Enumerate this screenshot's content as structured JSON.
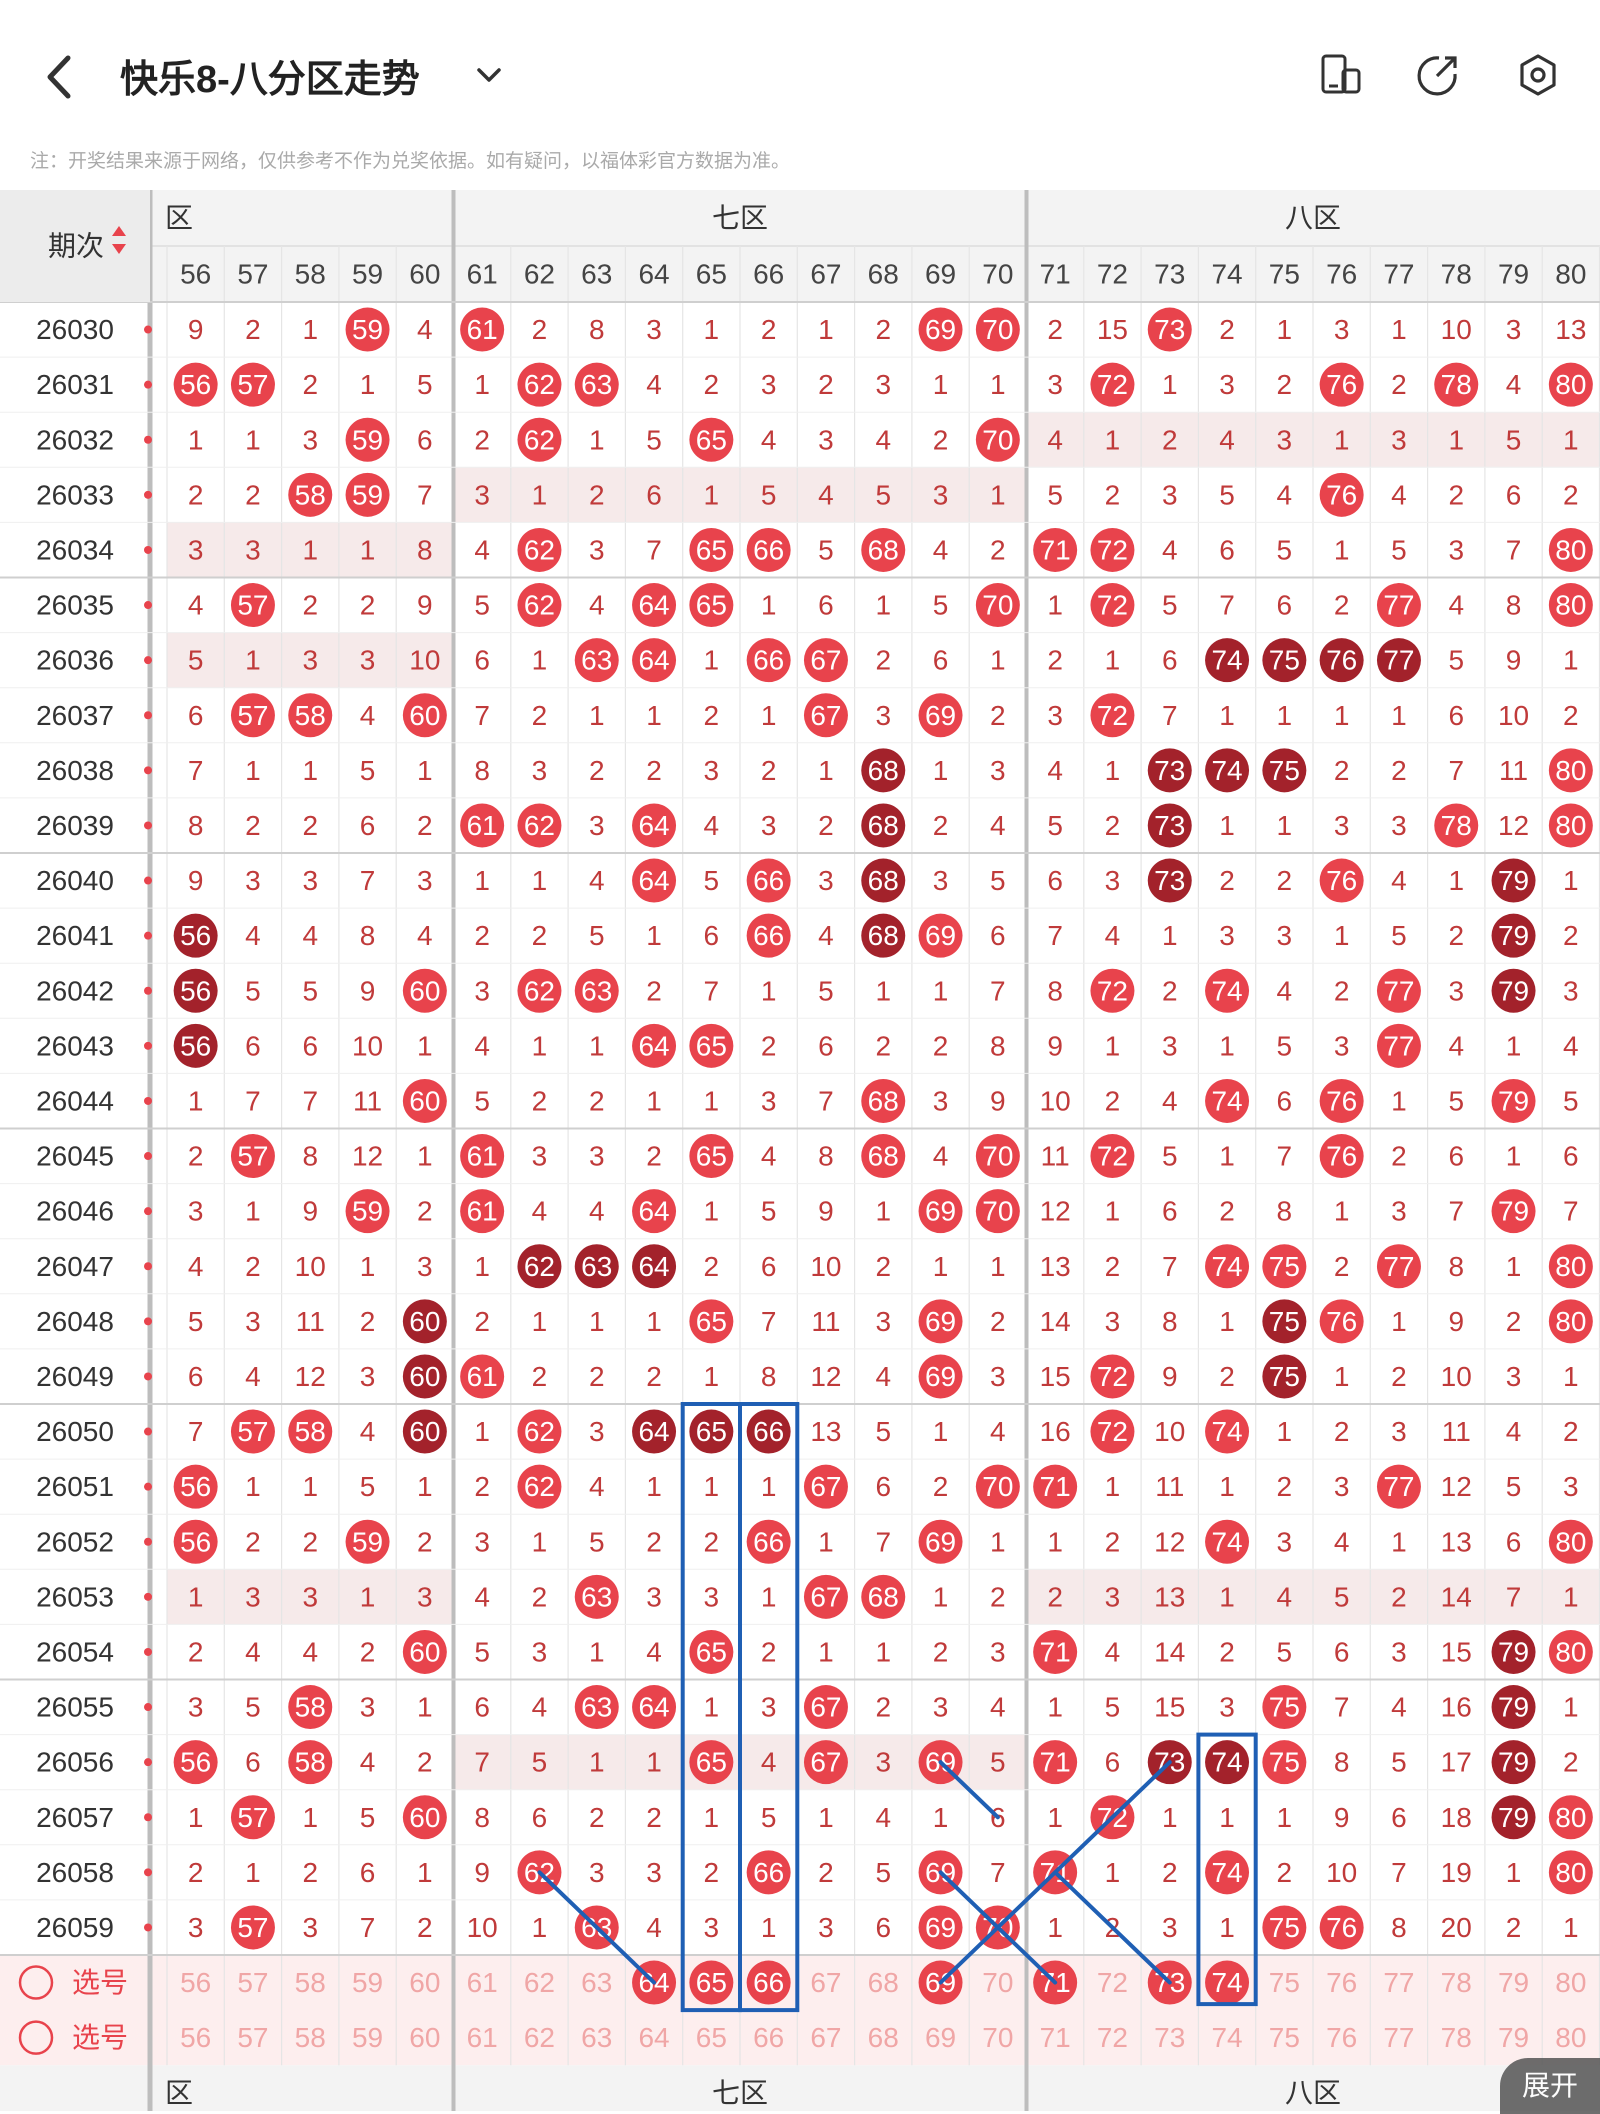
{
  "header": {
    "title": "快乐8-八分区走势",
    "note": "注：开奖结果来源于网络，仅供参考不作为兑奖依据。如有疑问，以福体彩官方数据为准。",
    "icons": [
      "back-icon",
      "dropdown-icon",
      "device-icon",
      "share-icon",
      "settings-icon"
    ]
  },
  "table": {
    "period_header": "期次",
    "sections": [
      {
        "label": "六区",
        "start": 56,
        "end": 60
      },
      {
        "label": "七区",
        "start": 61,
        "end": 70
      },
      {
        "label": "八区",
        "start": 71,
        "end": 80
      }
    ],
    "columns": [
      56,
      57,
      58,
      59,
      60,
      61,
      62,
      63,
      64,
      65,
      66,
      67,
      68,
      69,
      70,
      71,
      72,
      73,
      74,
      75,
      76,
      77,
      78,
      79,
      80
    ],
    "rows": [
      {
        "period": "26030",
        "values": [
          9,
          2,
          1,
          59,
          4,
          61,
          2,
          8,
          3,
          1,
          2,
          1,
          2,
          69,
          70,
          2,
          15,
          73,
          2,
          1,
          3,
          1,
          10,
          3,
          13
        ]
      },
      {
        "period": "26031",
        "values": [
          56,
          57,
          2,
          1,
          5,
          1,
          62,
          63,
          4,
          2,
          3,
          2,
          3,
          1,
          1,
          3,
          72,
          1,
          3,
          2,
          76,
          2,
          78,
          4,
          80
        ]
      },
      {
        "period": "26032",
        "values": [
          1,
          1,
          3,
          59,
          6,
          2,
          62,
          1,
          5,
          65,
          4,
          3,
          4,
          2,
          70,
          4,
          1,
          2,
          4,
          3,
          1,
          3,
          1,
          5,
          1
        ]
      },
      {
        "period": "26033",
        "values": [
          2,
          2,
          58,
          59,
          7,
          3,
          1,
          2,
          6,
          1,
          5,
          4,
          5,
          3,
          1,
          5,
          2,
          3,
          5,
          4,
          76,
          4,
          2,
          6,
          2
        ]
      },
      {
        "period": "26034",
        "values": [
          3,
          3,
          1,
          1,
          8,
          4,
          62,
          3,
          7,
          65,
          66,
          5,
          68,
          4,
          2,
          71,
          72,
          4,
          6,
          5,
          1,
          5,
          3,
          7,
          80
        ]
      },
      {
        "period": "26035",
        "values": [
          4,
          57,
          2,
          2,
          9,
          5,
          62,
          4,
          64,
          65,
          1,
          6,
          1,
          5,
          70,
          1,
          72,
          5,
          7,
          6,
          2,
          77,
          4,
          8,
          80
        ]
      },
      {
        "period": "26036",
        "values": [
          5,
          1,
          3,
          3,
          10,
          6,
          1,
          63,
          64,
          1,
          66,
          67,
          2,
          6,
          1,
          2,
          1,
          6,
          74,
          75,
          76,
          77,
          5,
          9,
          1
        ]
      },
      {
        "period": "26037",
        "values": [
          6,
          57,
          58,
          4,
          60,
          7,
          2,
          1,
          1,
          2,
          1,
          67,
          3,
          69,
          2,
          3,
          72,
          7,
          1,
          1,
          1,
          1,
          6,
          10,
          2
        ]
      },
      {
        "period": "26038",
        "values": [
          7,
          1,
          1,
          5,
          1,
          8,
          3,
          2,
          2,
          3,
          2,
          1,
          68,
          1,
          3,
          4,
          1,
          73,
          74,
          75,
          2,
          2,
          7,
          11,
          80
        ]
      },
      {
        "period": "26039",
        "values": [
          8,
          2,
          2,
          6,
          2,
          61,
          62,
          3,
          64,
          4,
          3,
          2,
          68,
          2,
          4,
          5,
          2,
          73,
          1,
          1,
          3,
          3,
          78,
          12,
          80
        ]
      },
      {
        "period": "26040",
        "values": [
          9,
          3,
          3,
          7,
          3,
          1,
          1,
          4,
          64,
          5,
          66,
          3,
          68,
          3,
          5,
          6,
          3,
          73,
          2,
          2,
          76,
          4,
          1,
          79,
          1
        ]
      },
      {
        "period": "26041",
        "values": [
          56,
          4,
          4,
          8,
          4,
          2,
          2,
          5,
          1,
          6,
          66,
          4,
          68,
          69,
          6,
          7,
          4,
          1,
          3,
          3,
          1,
          5,
          2,
          79,
          2
        ]
      },
      {
        "period": "26042",
        "values": [
          56,
          5,
          5,
          9,
          60,
          3,
          62,
          63,
          2,
          7,
          1,
          5,
          1,
          1,
          7,
          8,
          72,
          2,
          74,
          4,
          2,
          77,
          3,
          79,
          3
        ]
      },
      {
        "period": "26043",
        "values": [
          56,
          6,
          6,
          10,
          1,
          4,
          1,
          1,
          64,
          65,
          2,
          6,
          2,
          2,
          8,
          9,
          1,
          3,
          1,
          5,
          3,
          77,
          4,
          1,
          4
        ]
      },
      {
        "period": "26044",
        "values": [
          1,
          7,
          7,
          11,
          60,
          5,
          2,
          2,
          1,
          1,
          3,
          7,
          68,
          3,
          9,
          10,
          2,
          4,
          74,
          6,
          76,
          1,
          5,
          79,
          5
        ]
      },
      {
        "period": "26045",
        "values": [
          2,
          57,
          8,
          12,
          1,
          61,
          3,
          3,
          2,
          65,
          4,
          8,
          68,
          4,
          70,
          11,
          72,
          5,
          1,
          7,
          76,
          2,
          6,
          1,
          6
        ]
      },
      {
        "period": "26046",
        "values": [
          3,
          1,
          9,
          59,
          2,
          61,
          4,
          4,
          64,
          1,
          5,
          9,
          1,
          69,
          70,
          12,
          1,
          6,
          2,
          8,
          1,
          3,
          7,
          79,
          7
        ]
      },
      {
        "period": "26047",
        "values": [
          4,
          2,
          10,
          1,
          3,
          1,
          62,
          63,
          64,
          2,
          6,
          10,
          2,
          1,
          1,
          13,
          2,
          7,
          74,
          75,
          2,
          77,
          8,
          1,
          80
        ]
      },
      {
        "period": "26048",
        "values": [
          5,
          3,
          11,
          2,
          60,
          2,
          1,
          1,
          1,
          65,
          7,
          11,
          3,
          69,
          2,
          14,
          3,
          8,
          1,
          75,
          76,
          1,
          9,
          2,
          80
        ]
      },
      {
        "period": "26049",
        "values": [
          6,
          4,
          12,
          3,
          60,
          61,
          2,
          2,
          2,
          1,
          8,
          12,
          4,
          69,
          3,
          15,
          72,
          9,
          2,
          75,
          1,
          2,
          10,
          3,
          1
        ]
      },
      {
        "period": "26050",
        "values": [
          7,
          57,
          58,
          4,
          60,
          1,
          62,
          3,
          64,
          65,
          66,
          13,
          5,
          1,
          4,
          16,
          72,
          10,
          74,
          1,
          2,
          3,
          11,
          4,
          2
        ]
      },
      {
        "period": "26051",
        "values": [
          56,
          1,
          1,
          5,
          1,
          2,
          62,
          4,
          1,
          1,
          1,
          67,
          6,
          2,
          70,
          71,
          1,
          11,
          1,
          2,
          3,
          77,
          12,
          5,
          3
        ]
      },
      {
        "period": "26052",
        "values": [
          56,
          2,
          2,
          59,
          2,
          3,
          1,
          5,
          2,
          2,
          66,
          1,
          7,
          69,
          1,
          1,
          2,
          12,
          74,
          3,
          4,
          1,
          13,
          6,
          80
        ]
      },
      {
        "period": "26053",
        "values": [
          1,
          3,
          3,
          1,
          3,
          4,
          2,
          63,
          3,
          3,
          1,
          67,
          68,
          1,
          2,
          2,
          3,
          13,
          1,
          4,
          5,
          2,
          14,
          7,
          1
        ]
      },
      {
        "period": "26054",
        "values": [
          2,
          4,
          4,
          2,
          60,
          5,
          3,
          1,
          4,
          65,
          2,
          1,
          1,
          2,
          3,
          71,
          4,
          14,
          2,
          5,
          6,
          3,
          15,
          79,
          80
        ]
      },
      {
        "period": "26055",
        "values": [
          3,
          5,
          58,
          3,
          1,
          6,
          4,
          63,
          64,
          1,
          3,
          67,
          2,
          3,
          4,
          1,
          5,
          15,
          3,
          75,
          7,
          4,
          16,
          79,
          1
        ]
      },
      {
        "period": "26056",
        "values": [
          56,
          6,
          58,
          4,
          2,
          7,
          5,
          1,
          1,
          65,
          4,
          67,
          3,
          69,
          5,
          71,
          6,
          73,
          74,
          75,
          8,
          5,
          17,
          79,
          2
        ]
      },
      {
        "period": "26057",
        "values": [
          1,
          57,
          1,
          5,
          60,
          8,
          6,
          2,
          2,
          1,
          5,
          1,
          4,
          1,
          6,
          1,
          72,
          1,
          1,
          1,
          9,
          6,
          18,
          79,
          80
        ]
      },
      {
        "period": "26058",
        "values": [
          2,
          1,
          2,
          6,
          1,
          9,
          62,
          3,
          3,
          2,
          66,
          2,
          5,
          69,
          7,
          71,
          1,
          2,
          74,
          2,
          10,
          7,
          19,
          1,
          80
        ]
      },
      {
        "period": "26059",
        "values": [
          3,
          57,
          3,
          7,
          2,
          10,
          1,
          63,
          4,
          3,
          1,
          3,
          6,
          69,
          70,
          1,
          2,
          3,
          1,
          75,
          76,
          8,
          20,
          2,
          1
        ]
      }
    ],
    "dark_cells": [
      [
        "26036",
        "74"
      ],
      [
        "26036",
        "75"
      ],
      [
        "26036",
        "76"
      ],
      [
        "26036",
        "77"
      ],
      [
        "26038",
        "68"
      ],
      [
        "26038",
        "73"
      ],
      [
        "26038",
        "74"
      ],
      [
        "26038",
        "75"
      ],
      [
        "26039",
        "68"
      ],
      [
        "26039",
        "73"
      ],
      [
        "26040",
        "68"
      ],
      [
        "26040",
        "73"
      ],
      [
        "26040",
        "79"
      ],
      [
        "26041",
        "56"
      ],
      [
        "26041",
        "68"
      ],
      [
        "26041",
        "79"
      ],
      [
        "26042",
        "56"
      ],
      [
        "26042",
        "79"
      ],
      [
        "26043",
        "56"
      ],
      [
        "26047",
        "62"
      ],
      [
        "26047",
        "63"
      ],
      [
        "26047",
        "64"
      ],
      [
        "26048",
        "60"
      ],
      [
        "26048",
        "75"
      ],
      [
        "26049",
        "60"
      ],
      [
        "26049",
        "75"
      ],
      [
        "26050",
        "60"
      ],
      [
        "26050",
        "64"
      ],
      [
        "26050",
        "65"
      ],
      [
        "26050",
        "66"
      ],
      [
        "26054",
        "79"
      ],
      [
        "26055",
        "79"
      ],
      [
        "26056",
        "73"
      ],
      [
        "26056",
        "74"
      ],
      [
        "26056",
        "79"
      ],
      [
        "26057",
        "79"
      ]
    ],
    "select_rows": [
      {
        "label": "选号",
        "highlight": [
          64,
          65,
          66,
          69,
          71,
          73,
          74
        ]
      },
      {
        "label": "选号",
        "highlight": []
      }
    ],
    "footer_sections": [
      "六区",
      "七区",
      "八区"
    ],
    "expand_label": "展开"
  },
  "colors": {
    "red_ball": "#e8434c",
    "dark_ball": "#a3222b",
    "blue_mark": "#1f5fb4",
    "miss_text": "#c03a3a",
    "select_bg": "#fdeeee"
  }
}
